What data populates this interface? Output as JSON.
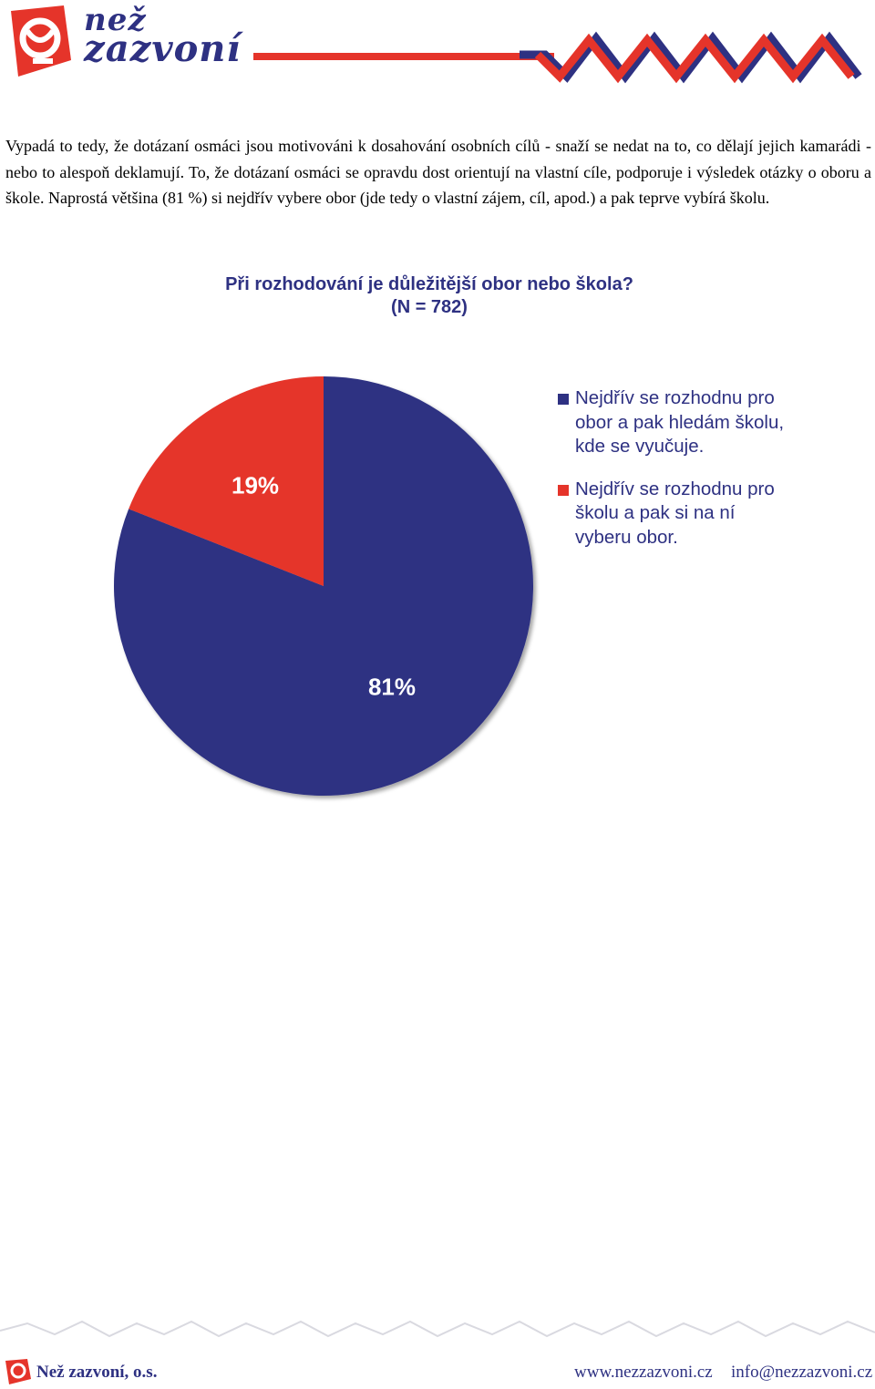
{
  "header": {
    "logo_line1": "než",
    "logo_line2": "zazvoní"
  },
  "paragraph": "Vypadá to tedy, že dotázaní osmáci jsou motivováni k dosahování osobních cílů - snaží se nedat na to, co dělají jejich kamarádi - nebo to alespoň deklamují. To, že dotázaní osmáci se opravdu dost orientují na vlastní cíle, podporuje i výsledek otázky o oboru a škole. Naprostá většina (81 %) si nejdřív vybere obor (jde tedy o vlastní zájem, cíl, apod.) a pak teprve vybírá školu.",
  "chart_data": {
    "type": "pie",
    "title": "Při rozhodování je důležitější obor nebo škola?",
    "subtitle": "(N = 782)",
    "legend_position": "right",
    "series": [
      {
        "name": "Nejdřív se rozhodnu pro obor a pak hledám školu, kde se vyučuje.",
        "value": 81,
        "label": "81%",
        "color": "#2e3182"
      },
      {
        "name": "Nejdřív se rozhodnu pro školu a pak si na ní vyberu obor.",
        "value": 19,
        "label": "19%",
        "color": "#e5342a"
      }
    ]
  },
  "footer": {
    "name": "Než zazvoní, o.s.",
    "web": "www.nezzazvoni.cz",
    "email": "info@nezzazvoni.cz"
  },
  "colors": {
    "brand_blue": "#2e3182",
    "brand_red": "#e5342a"
  }
}
